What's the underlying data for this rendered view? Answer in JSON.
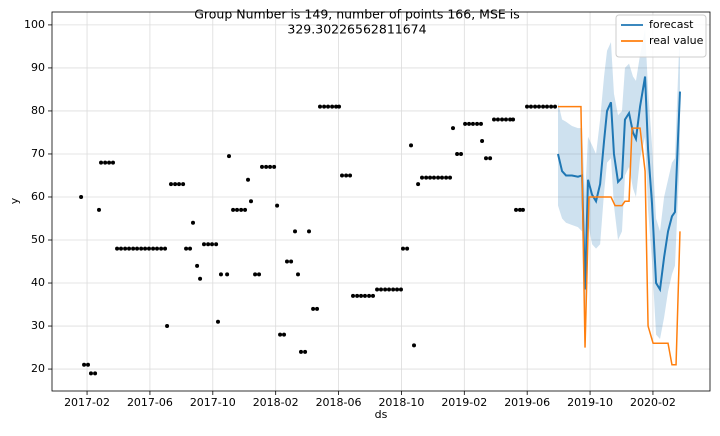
{
  "chart_data": {
    "type": "forecast",
    "title": [
      "Group Number is 149, number of points 166, MSE is",
      "329.30226562811674"
    ],
    "x_label": "ds",
    "y_label": "y",
    "xlim": [
      -1.23,
      40.63
    ],
    "ylim": [
      14.9,
      103.0
    ],
    "xticks": [
      {
        "value": 1,
        "label": "2017-02"
      },
      {
        "value": 5,
        "label": "2017-06"
      },
      {
        "value": 9,
        "label": "2017-10"
      },
      {
        "value": 13,
        "label": "2018-02"
      },
      {
        "value": 17,
        "label": "2018-06"
      },
      {
        "value": 21,
        "label": "2018-10"
      },
      {
        "value": 25,
        "label": "2019-02"
      },
      {
        "value": 29,
        "label": "2019-06"
      },
      {
        "value": 33,
        "label": "2019-10"
      },
      {
        "value": 37,
        "label": "2020-02"
      }
    ],
    "yticks": [
      20,
      30,
      40,
      50,
      60,
      70,
      80,
      90,
      100
    ],
    "grid": true,
    "legend": "upper right",
    "points": {
      "color": "#000000",
      "x": [
        0.62,
        0.81,
        1.06,
        1.25,
        1.51,
        1.76,
        1.89,
        2.15,
        2.4,
        2.65,
        2.91,
        3.16,
        3.42,
        3.67,
        3.93,
        4.18,
        4.44,
        4.69,
        4.94,
        5.2,
        5.45,
        5.71,
        5.96,
        6.09,
        6.34,
        6.6,
        6.85,
        7.11,
        7.3,
        7.55,
        7.74,
        8.0,
        8.19,
        8.44,
        8.7,
        8.95,
        9.21,
        9.33,
        9.52,
        9.91,
        10.03,
        10.29,
        10.54,
        10.8,
        11.05,
        11.24,
        11.43,
        11.69,
        11.94,
        12.13,
        12.39,
        12.64,
        12.9,
        13.09,
        13.28,
        13.53,
        13.72,
        13.98,
        14.23,
        14.42,
        14.61,
        14.87,
        15.12,
        15.38,
        15.63,
        15.82,
        16.08,
        16.33,
        16.59,
        16.84,
        17.03,
        17.22,
        17.48,
        17.73,
        17.92,
        18.18,
        18.43,
        18.68,
        18.94,
        19.19,
        19.45,
        19.7,
        19.96,
        20.21,
        20.47,
        20.72,
        20.97,
        21.1,
        21.36,
        21.61,
        21.8,
        22.06,
        22.31,
        22.57,
        22.82,
        23.07,
        23.33,
        23.58,
        23.84,
        24.09,
        24.28,
        24.54,
        24.79,
        25.05,
        25.3,
        25.55,
        25.81,
        26.06,
        26.13,
        26.38,
        26.64,
        26.89,
        27.14,
        27.4,
        27.65,
        27.91,
        28.1,
        28.29,
        28.54,
        28.73,
        28.99,
        29.24,
        29.5,
        29.75,
        30.01,
        30.26,
        30.52,
        30.77
      ],
      "values": [
        60,
        21,
        21,
        19,
        19,
        57,
        68,
        68,
        68,
        68,
        48,
        48,
        48,
        48,
        48,
        48,
        48,
        48,
        48,
        48,
        48,
        48,
        48,
        30,
        63,
        63,
        63,
        63,
        48,
        48,
        54,
        44,
        41,
        49,
        49,
        49,
        49,
        31,
        42,
        42,
        69.5,
        57,
        57,
        57,
        57,
        64,
        59,
        42,
        42,
        67,
        67,
        67,
        67,
        58,
        28,
        28,
        45,
        45,
        52,
        42,
        24,
        24,
        52,
        34,
        34,
        81,
        81,
        81,
        81,
        81,
        81,
        65,
        65,
        65,
        37,
        37,
        37,
        37,
        37,
        37,
        38.5,
        38.5,
        38.5,
        38.5,
        38.5,
        38.5,
        38.5,
        48,
        48,
        72,
        25.5,
        63,
        64.5,
        64.5,
        64.5,
        64.5,
        64.5,
        64.5,
        64.5,
        64.5,
        76,
        70,
        70,
        77,
        77,
        77,
        77,
        77,
        73,
        69,
        69,
        78,
        78,
        78,
        78,
        78,
        78,
        57,
        57,
        57,
        81,
        81,
        81,
        81,
        81,
        81,
        81,
        81
      ]
    },
    "band": {
      "color": "#1f77b4",
      "opacity": 0.22,
      "x": [
        30.96,
        31.22,
        31.47,
        31.85,
        32.23,
        32.49,
        32.68,
        32.87,
        33.13,
        33.38,
        33.64,
        33.89,
        34.08,
        34.33,
        34.52,
        34.78,
        35.03,
        35.22,
        35.48,
        35.73,
        35.92,
        36.18,
        36.5,
        36.69,
        36.94,
        37.2,
        37.45,
        37.71,
        37.96,
        38.21,
        38.4,
        38.72
      ],
      "upper": [
        82,
        78,
        77.5,
        76.5,
        76,
        76,
        60,
        74,
        72,
        70,
        78,
        88,
        94,
        96,
        84,
        79,
        80,
        90,
        91,
        88,
        87,
        93,
        99,
        85,
        72,
        55,
        52,
        60,
        64,
        68,
        69,
        100
      ],
      "lower": [
        58,
        55,
        54,
        53.5,
        53,
        52,
        27,
        54,
        49,
        48,
        49,
        61,
        68,
        69,
        58,
        50,
        52,
        65,
        67,
        62,
        60,
        69,
        74,
        57,
        45,
        28,
        27,
        32,
        38,
        42,
        44,
        70
      ]
    },
    "series": [
      {
        "name": "forecast",
        "color": "#1f77b4",
        "x": [
          30.96,
          31.22,
          31.47,
          31.85,
          32.23,
          32.49,
          32.68,
          32.87,
          33.13,
          33.38,
          33.64,
          33.89,
          34.08,
          34.33,
          34.52,
          34.78,
          35.03,
          35.22,
          35.48,
          35.73,
          35.92,
          36.18,
          36.5,
          36.69,
          36.94,
          37.2,
          37.45,
          37.71,
          37.96,
          38.21,
          38.4,
          38.72
        ],
        "values": [
          70,
          66,
          65,
          65,
          64.7,
          65,
          38.5,
          64,
          60.5,
          59,
          63,
          73,
          80,
          82,
          70,
          63.5,
          64.5,
          78,
          79.5,
          75,
          73.5,
          81,
          88,
          71,
          58.5,
          40,
          38.5,
          46,
          52,
          55.5,
          56.5,
          84.5
        ]
      },
      {
        "name": "real value",
        "color": "#ff7f0e",
        "x": [
          30.96,
          32.42,
          32.68,
          32.93,
          34.33,
          34.59,
          35.03,
          35.22,
          35.48,
          35.67,
          36.18,
          36.5,
          36.69,
          37.01,
          37.96,
          38.21,
          38.47,
          38.72
        ],
        "values": [
          81,
          81,
          25,
          60,
          60,
          58,
          58,
          59,
          59,
          76,
          76,
          66,
          30,
          26,
          26,
          21,
          21,
          52
        ]
      }
    ]
  }
}
